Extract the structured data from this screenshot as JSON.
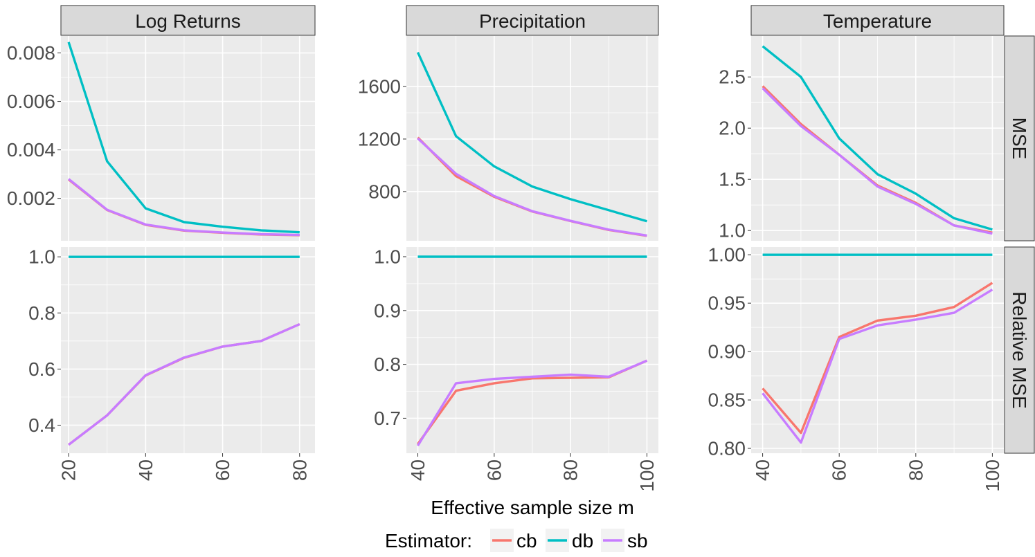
{
  "colors": {
    "cb": "#F8766D",
    "db": "#00BFC4",
    "sb": "#C77CFF",
    "panel": "#EBEBEB",
    "strip": "#D9D9D9",
    "tick_text": "#4D4D4D"
  },
  "chart_data": [
    {
      "type": "line",
      "column": "Log Returns",
      "row": "MSE",
      "x": [
        20,
        30,
        40,
        50,
        60,
        70,
        80
      ],
      "xlim": [
        18,
        84
      ],
      "ylim": [
        0.00025,
        0.0087
      ],
      "xticks": [
        20,
        40,
        60,
        80
      ],
      "xtick_labels": [
        "20",
        "40",
        "60",
        "80"
      ],
      "yticks": [
        0.002,
        0.004,
        0.006,
        0.008
      ],
      "ytick_labels": [
        "0.002",
        "0.004",
        "0.006",
        "0.008"
      ],
      "series": [
        {
          "name": "cb",
          "values": [
            0.00278,
            0.00152,
            0.00091,
            0.00067,
            0.00058,
            0.00051,
            0.00048
          ]
        },
        {
          "name": "db",
          "values": [
            0.00845,
            0.00353,
            0.00159,
            0.00102,
            0.00083,
            0.00068,
            0.0006
          ]
        },
        {
          "name": "sb",
          "values": [
            0.0028,
            0.00153,
            0.00092,
            0.00068,
            0.00059,
            0.00052,
            0.00049
          ]
        }
      ]
    },
    {
      "type": "line",
      "column": "Precipitation",
      "row": "MSE",
      "x": [
        40,
        50,
        60,
        70,
        80,
        90,
        100
      ],
      "xlim": [
        37,
        103
      ],
      "ylim": [
        425,
        1985
      ],
      "xticks": [
        40,
        60,
        80,
        100
      ],
      "xtick_labels": [
        "40",
        "60",
        "80",
        "100"
      ],
      "yticks": [
        800,
        1200,
        1600
      ],
      "ytick_labels": [
        "800",
        "1200",
        "1600"
      ],
      "series": [
        {
          "name": "cb",
          "values": [
            1212,
            918,
            760,
            648,
            575,
            508,
            463
          ]
        },
        {
          "name": "db",
          "values": [
            1860,
            1222,
            992,
            838,
            742,
            658,
            574
          ]
        },
        {
          "name": "sb",
          "values": [
            1205,
            935,
            766,
            650,
            577,
            510,
            465
          ]
        }
      ]
    },
    {
      "type": "line",
      "column": "Temperature",
      "row": "MSE",
      "x": [
        40,
        50,
        60,
        70,
        80,
        90,
        100
      ],
      "xlim": [
        37,
        103
      ],
      "ylim": [
        0.9,
        2.9
      ],
      "xticks": [
        40,
        60,
        80,
        100
      ],
      "xtick_labels": [
        "40",
        "60",
        "80",
        "100"
      ],
      "yticks": [
        1.0,
        1.5,
        2.0,
        2.5
      ],
      "ytick_labels": [
        "1.0",
        "1.5",
        "2.0",
        "2.5"
      ],
      "series": [
        {
          "name": "cb",
          "values": [
            2.41,
            2.04,
            1.74,
            1.44,
            1.27,
            1.05,
            0.98
          ]
        },
        {
          "name": "db",
          "values": [
            2.8,
            2.5,
            1.9,
            1.55,
            1.36,
            1.12,
            1.01
          ]
        },
        {
          "name": "sb",
          "values": [
            2.39,
            2.02,
            1.74,
            1.43,
            1.26,
            1.05,
            0.97
          ]
        }
      ]
    },
    {
      "type": "line",
      "column": "Log Returns",
      "row": "Relative MSE",
      "x": [
        20,
        30,
        40,
        50,
        60,
        70,
        80
      ],
      "xlim": [
        18,
        84
      ],
      "ylim": [
        0.3,
        1.035
      ],
      "xticks": [
        20,
        40,
        60,
        80
      ],
      "xtick_labels": [
        "20",
        "40",
        "60",
        "80"
      ],
      "yticks": [
        0.4,
        0.6,
        0.8,
        1.0
      ],
      "ytick_labels": [
        "0.4",
        "0.6",
        "0.8",
        "1.0"
      ],
      "series": [
        {
          "name": "cb",
          "values": [
            0.33,
            0.435,
            0.577,
            0.64,
            0.68,
            0.7,
            0.76
          ]
        },
        {
          "name": "db",
          "values": [
            1.0,
            1.0,
            1.0,
            1.0,
            1.0,
            1.0,
            1.0
          ]
        },
        {
          "name": "sb",
          "values": [
            0.33,
            0.435,
            0.578,
            0.641,
            0.68,
            0.7,
            0.76
          ]
        }
      ]
    },
    {
      "type": "line",
      "column": "Precipitation",
      "row": "Relative MSE",
      "x": [
        40,
        50,
        60,
        70,
        80,
        90,
        100
      ],
      "xlim": [
        37,
        103
      ],
      "ylim": [
        0.635,
        1.018
      ],
      "xticks": [
        40,
        60,
        80,
        100
      ],
      "xtick_labels": [
        "40",
        "60",
        "80",
        "100"
      ],
      "yticks": [
        0.7,
        0.8,
        0.9,
        1.0
      ],
      "ytick_labels": [
        "0.7",
        "0.8",
        "0.9",
        "1.0"
      ],
      "series": [
        {
          "name": "cb",
          "values": [
            0.652,
            0.751,
            0.765,
            0.774,
            0.775,
            0.776,
            0.807
          ]
        },
        {
          "name": "db",
          "values": [
            1.0,
            1.0,
            1.0,
            1.0,
            1.0,
            1.0,
            1.0
          ]
        },
        {
          "name": "sb",
          "values": [
            0.649,
            0.765,
            0.773,
            0.777,
            0.781,
            0.777,
            0.807
          ]
        }
      ]
    },
    {
      "type": "line",
      "column": "Temperature",
      "row": "Relative MSE",
      "x": [
        40,
        50,
        60,
        70,
        80,
        90,
        100
      ],
      "xlim": [
        37,
        103
      ],
      "ylim": [
        0.795,
        1.008
      ],
      "xticks": [
        40,
        60,
        80,
        100
      ],
      "xtick_labels": [
        "40",
        "60",
        "80",
        "100"
      ],
      "yticks": [
        0.8,
        0.85,
        0.9,
        0.95,
        1.0
      ],
      "ytick_labels": [
        "0.80",
        "0.85",
        "0.90",
        "0.95",
        "1.00"
      ],
      "series": [
        {
          "name": "cb",
          "values": [
            0.862,
            0.816,
            0.915,
            0.932,
            0.937,
            0.946,
            0.971
          ]
        },
        {
          "name": "db",
          "values": [
            1.0,
            1.0,
            1.0,
            1.0,
            1.0,
            1.0,
            1.0
          ]
        },
        {
          "name": "sb",
          "values": [
            0.857,
            0.806,
            0.913,
            0.927,
            0.933,
            0.94,
            0.964
          ]
        }
      ]
    }
  ],
  "strips": {
    "columns": [
      "Log Returns",
      "Precipitation",
      "Temperature"
    ],
    "rows": [
      "MSE",
      "Relative MSE"
    ]
  },
  "axes": {
    "xlabel": "Effective sample size m"
  },
  "legend": {
    "title": "Estimator:",
    "items": [
      {
        "key": "cb",
        "label": "cb"
      },
      {
        "key": "db",
        "label": "db"
      },
      {
        "key": "sb",
        "label": "sb"
      }
    ]
  }
}
